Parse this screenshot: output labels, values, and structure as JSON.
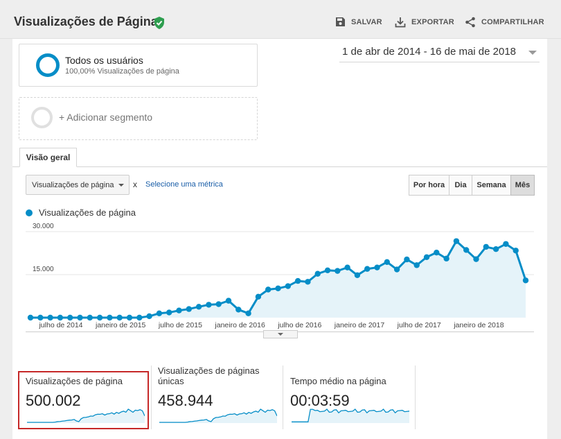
{
  "header": {
    "title": "Visualizações de Página",
    "actions": [
      {
        "label": "SALVAR",
        "icon": "save-icon"
      },
      {
        "label": "EXPORTAR",
        "icon": "download-icon"
      },
      {
        "label": "COMPARTILHAR",
        "icon": "share-icon"
      }
    ]
  },
  "segments": {
    "active": {
      "title": "Todos os usuários",
      "subtitle": "100,00% Visualizações de página"
    },
    "add_label": "+ Adicionar segmento"
  },
  "date_range": "1 de abr de 2014 - 16 de mai de 2018",
  "tabs": [
    {
      "label": "Visão geral"
    }
  ],
  "metric_selector": {
    "value": "Visualizações de página",
    "separator": "x",
    "link": "Selecione uma métrica"
  },
  "granularity": [
    {
      "label": "Por hora",
      "active": false
    },
    {
      "label": "Dia",
      "active": false
    },
    {
      "label": "Semana",
      "active": false
    },
    {
      "label": "Mês",
      "active": true
    }
  ],
  "colors": {
    "series": "#058dc7",
    "fill": "#e5f3f9",
    "selection": "#c62828"
  },
  "chart_data": {
    "type": "line",
    "series": [
      {
        "name": "Visualizações de página",
        "values": [
          0,
          0,
          0,
          0,
          0,
          0,
          0,
          0,
          0,
          0,
          0,
          0,
          500,
          1500,
          1800,
          2500,
          3000,
          3800,
          4500,
          4700,
          5900,
          2800,
          1500,
          7300,
          9800,
          10200,
          11000,
          12800,
          12500,
          15300,
          16500,
          16300,
          17500,
          14800,
          17000,
          17500,
          19400,
          16800,
          20300,
          18300,
          21100,
          22700,
          20600,
          26700,
          23600,
          20400,
          24700,
          23900,
          25700,
          23400,
          13000
        ]
      }
    ],
    "y_ticks": [
      {
        "label": "30.000",
        "value": 30000
      },
      {
        "label": "15.000",
        "value": 15000
      }
    ],
    "ylim": [
      0,
      30000
    ],
    "x_ticks": [
      "julho de 2014",
      "janeiro de 2015",
      "julho de 2015",
      "janeiro de 2016",
      "julho de 2016",
      "janeiro de 2017",
      "julho de 2017",
      "janeiro de 2018"
    ],
    "grid": true,
    "legend": "top-left"
  },
  "scorecards": [
    {
      "label": "Visualizações de página",
      "value": "500.002",
      "selected": true
    },
    {
      "label": "Visualizações de páginas únicas",
      "label_line1": "Visualizações de páginas",
      "label_line2": "únicas",
      "value": "458.944",
      "selected": false
    },
    {
      "label": "Tempo médio na página",
      "value": "00:03:59",
      "selected": false
    }
  ]
}
